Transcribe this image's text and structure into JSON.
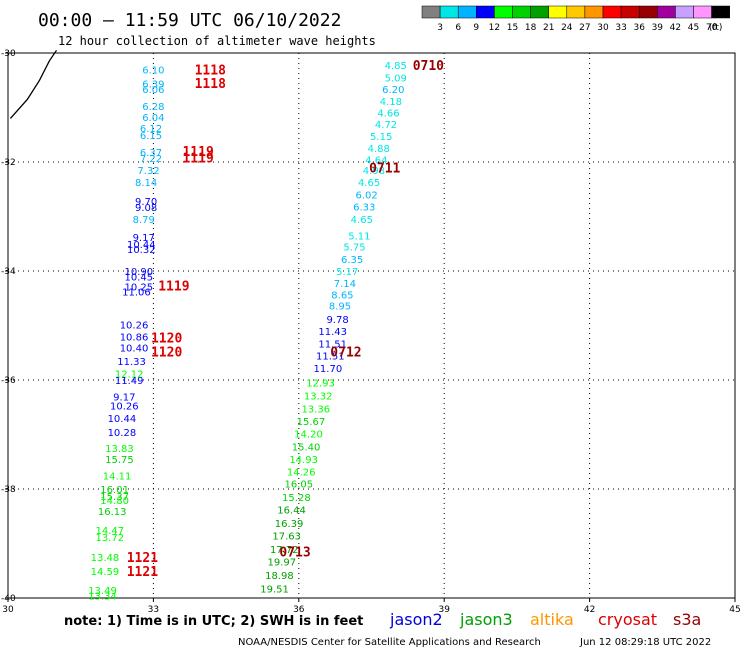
{
  "header": {
    "title": "00:00 – 11:59 UTC 06/10/2022",
    "subtitle": "12 hour collection of altimeter wave heights"
  },
  "colorbar": {
    "colors": [
      "#808080",
      "#00e6e6",
      "#00b4ff",
      "#0000ff",
      "#00ff00",
      "#00d200",
      "#00a000",
      "#ffff00",
      "#ffc800",
      "#ff9600",
      "#ff0000",
      "#c80000",
      "#960000",
      "#a000a0",
      "#c8a0ff",
      "#ff96ff",
      "#000000"
    ],
    "labels": [
      "3",
      "6",
      "9",
      "12",
      "15",
      "18",
      "21",
      "24",
      "27",
      "30",
      "33",
      "36",
      "39",
      "42",
      "45",
      "70",
      "(ft)"
    ]
  },
  "footer": {
    "note": "note: 1) Time is in UTC; 2) SWH is in feet",
    "credit": "NOAA/NESDIS Center for Satellite Applications and Research",
    "timestamp": "Jun 12 08:29:18 UTC 2022",
    "legend": [
      {
        "name": "jason2",
        "color": "#0000dd"
      },
      {
        "name": "jason3",
        "color": "#00a000"
      },
      {
        "name": "altika",
        "color": "#ff9600"
      },
      {
        "name": "cryosat",
        "color": "#dd0000"
      },
      {
        "name": "s3a",
        "color": "#960000"
      }
    ]
  },
  "chart_data": {
    "type": "scatter",
    "xlim": [
      30,
      45
    ],
    "ylim": [
      -40,
      -30
    ],
    "xticks": [
      "30",
      "33",
      "36",
      "39",
      "42",
      "45"
    ],
    "yticks": [
      "-30",
      "-32",
      "-34",
      "-36",
      "-38",
      "-40"
    ],
    "grid": "dotted",
    "coastline": [
      [
        30.05,
        -31.2
      ],
      [
        30.4,
        -30.85
      ],
      [
        30.65,
        -30.5
      ],
      [
        30.85,
        -30.15
      ],
      [
        31.0,
        -29.95
      ]
    ],
    "track_labels": [
      {
        "lon": 33.85,
        "lat": -30.3,
        "text": "1118",
        "color": "#dd0000"
      },
      {
        "lon": 33.85,
        "lat": -30.55,
        "text": "1118",
        "color": "#dd0000"
      },
      {
        "lon": 33.6,
        "lat": -31.8,
        "text": "1119",
        "color": "#dd0000"
      },
      {
        "lon": 33.6,
        "lat": -31.92,
        "text": "1119",
        "color": "#dd0000"
      },
      {
        "lon": 33.1,
        "lat": -34.27,
        "text": "1119",
        "color": "#dd0000"
      },
      {
        "lon": 32.95,
        "lat": -35.22,
        "text": "1120",
        "color": "#dd0000"
      },
      {
        "lon": 32.95,
        "lat": -35.48,
        "text": "1120",
        "color": "#dd0000"
      },
      {
        "lon": 32.45,
        "lat": -39.25,
        "text": "1121",
        "color": "#dd0000"
      },
      {
        "lon": 32.45,
        "lat": -39.5,
        "text": "1121",
        "color": "#dd0000"
      },
      {
        "lon": 38.35,
        "lat": -30.22,
        "text": "0710",
        "color": "#960000"
      },
      {
        "lon": 37.45,
        "lat": -32.1,
        "text": "0711",
        "color": "#960000"
      },
      {
        "lon": 36.65,
        "lat": -35.48,
        "text": "0712",
        "color": "#960000"
      },
      {
        "lon": 35.6,
        "lat": -39.15,
        "text": "0713",
        "color": "#960000"
      }
    ],
    "series": [
      {
        "name": "cryosat",
        "points": [
          {
            "lon": 33.0,
            "lat": -30.3,
            "swh": "6.10",
            "color": "#00b4ff"
          },
          {
            "lon": 33.0,
            "lat": -30.56,
            "swh": "6.39",
            "color": "#00b4ff"
          },
          {
            "lon": 33.0,
            "lat": -30.66,
            "swh": "6.06",
            "color": "#00b4ff"
          },
          {
            "lon": 33.0,
            "lat": -30.97,
            "swh": "6.28",
            "color": "#00b4ff"
          },
          {
            "lon": 33.0,
            "lat": -31.17,
            "swh": "6.04",
            "color": "#00b4ff"
          },
          {
            "lon": 32.95,
            "lat": -31.38,
            "swh": "6.12",
            "color": "#00b4ff"
          },
          {
            "lon": 32.95,
            "lat": -31.5,
            "swh": "6.15",
            "color": "#00b4ff"
          },
          {
            "lon": 32.95,
            "lat": -31.82,
            "swh": "6.37",
            "color": "#00b4ff"
          },
          {
            "lon": 32.95,
            "lat": -31.93,
            "swh": "7.22",
            "color": "#00b4ff"
          },
          {
            "lon": 32.9,
            "lat": -32.15,
            "swh": "7.32",
            "color": "#00b4ff"
          },
          {
            "lon": 32.85,
            "lat": -32.37,
            "swh": "8.14",
            "color": "#00b4ff"
          },
          {
            "lon": 32.85,
            "lat": -32.72,
            "swh": "9.70",
            "color": "#0000ff"
          },
          {
            "lon": 32.85,
            "lat": -32.83,
            "swh": "9.08",
            "color": "#0000ff"
          },
          {
            "lon": 32.8,
            "lat": -33.05,
            "swh": "8.79",
            "color": "#00b4ff"
          },
          {
            "lon": 32.8,
            "lat": -33.38,
            "swh": "9.17",
            "color": "#0000ff"
          },
          {
            "lon": 32.75,
            "lat": -33.5,
            "swh": "10.44",
            "color": "#0000ff"
          },
          {
            "lon": 32.75,
            "lat": -33.6,
            "swh": "10.32",
            "color": "#0000ff"
          },
          {
            "lon": 32.7,
            "lat": -34.0,
            "swh": "10.90",
            "color": "#0000ff"
          },
          {
            "lon": 32.7,
            "lat": -34.1,
            "swh": "10.45",
            "color": "#0000ff"
          },
          {
            "lon": 32.7,
            "lat": -34.28,
            "swh": "10.25",
            "color": "#0000ff"
          },
          {
            "lon": 32.65,
            "lat": -34.38,
            "swh": "11.06",
            "color": "#0000ff"
          },
          {
            "lon": 32.6,
            "lat": -34.98,
            "swh": "10.26",
            "color": "#0000ff"
          },
          {
            "lon": 32.6,
            "lat": -35.2,
            "swh": "10.86",
            "color": "#0000ff"
          },
          {
            "lon": 32.6,
            "lat": -35.4,
            "swh": "10.40",
            "color": "#0000ff"
          },
          {
            "lon": 32.55,
            "lat": -35.65,
            "swh": "11.33",
            "color": "#0000ff"
          },
          {
            "lon": 32.5,
            "lat": -35.88,
            "swh": "12.12",
            "color": "#00ff00"
          },
          {
            "lon": 32.5,
            "lat": -36.0,
            "swh": "11.49",
            "color": "#0000ff"
          },
          {
            "lon": 32.4,
            "lat": -36.3,
            "swh": "9.17",
            "color": "#0000ff"
          },
          {
            "lon": 32.4,
            "lat": -36.47,
            "swh": "10.26",
            "color": "#0000ff"
          },
          {
            "lon": 32.35,
            "lat": -36.7,
            "swh": "10.44",
            "color": "#0000ff"
          },
          {
            "lon": 32.35,
            "lat": -36.95,
            "swh": "10.28",
            "color": "#0000ff"
          },
          {
            "lon": 32.3,
            "lat": -37.25,
            "swh": "13.83",
            "color": "#00ff00"
          },
          {
            "lon": 32.3,
            "lat": -37.45,
            "swh": "15.75",
            "color": "#00d200"
          },
          {
            "lon": 32.25,
            "lat": -37.75,
            "swh": "14.11",
            "color": "#00ff00"
          },
          {
            "lon": 32.2,
            "lat": -38.0,
            "swh": "16.01",
            "color": "#00d200"
          },
          {
            "lon": 32.2,
            "lat": -38.13,
            "swh": "15.37",
            "color": "#00d200"
          },
          {
            "lon": 32.2,
            "lat": -38.2,
            "swh": "14.80",
            "color": "#00ff00"
          },
          {
            "lon": 32.15,
            "lat": -38.4,
            "swh": "16.13",
            "color": "#00d200"
          },
          {
            "lon": 32.1,
            "lat": -38.75,
            "swh": "14.47",
            "color": "#00ff00"
          },
          {
            "lon": 32.1,
            "lat": -38.88,
            "swh": "13.72",
            "color": "#00ff00"
          },
          {
            "lon": 32.0,
            "lat": -39.25,
            "swh": "13.48",
            "color": "#00ff00"
          },
          {
            "lon": 32.0,
            "lat": -39.5,
            "swh": "14.59",
            "color": "#00ff00"
          },
          {
            "lon": 31.95,
            "lat": -39.85,
            "swh": "13.49",
            "color": "#00ff00"
          },
          {
            "lon": 31.95,
            "lat": -39.95,
            "swh": "13.34",
            "color": "#00ff00"
          }
        ]
      },
      {
        "name": "s3a",
        "points": [
          {
            "lon": 38.0,
            "lat": -30.22,
            "swh": "4.85",
            "color": "#00e6e6"
          },
          {
            "lon": 38.0,
            "lat": -30.45,
            "swh": "5.09",
            "color": "#00e6e6"
          },
          {
            "lon": 37.95,
            "lat": -30.66,
            "swh": "6.20",
            "color": "#00b4ff"
          },
          {
            "lon": 37.9,
            "lat": -30.88,
            "swh": "4.18",
            "color": "#00e6e6"
          },
          {
            "lon": 37.85,
            "lat": -31.09,
            "swh": "4.66",
            "color": "#00e6e6"
          },
          {
            "lon": 37.8,
            "lat": -31.3,
            "swh": "4.72",
            "color": "#00e6e6"
          },
          {
            "lon": 37.7,
            "lat": -31.52,
            "swh": "5.15",
            "color": "#00e6e6"
          },
          {
            "lon": 37.65,
            "lat": -31.74,
            "swh": "4.88",
            "color": "#00e6e6"
          },
          {
            "lon": 37.6,
            "lat": -31.95,
            "swh": "4.64",
            "color": "#00e6e6"
          },
          {
            "lon": 37.55,
            "lat": -32.15,
            "swh": "4.98",
            "color": "#00e6e6"
          },
          {
            "lon": 37.45,
            "lat": -32.37,
            "swh": "4.65",
            "color": "#00e6e6"
          },
          {
            "lon": 37.4,
            "lat": -32.6,
            "swh": "6.02",
            "color": "#00b4ff"
          },
          {
            "lon": 37.35,
            "lat": -32.82,
            "swh": "6.33",
            "color": "#00b4ff"
          },
          {
            "lon": 37.3,
            "lat": -33.05,
            "swh": "4.65",
            "color": "#00e6e6"
          },
          {
            "lon": 37.25,
            "lat": -33.35,
            "swh": "5.11",
            "color": "#00e6e6"
          },
          {
            "lon": 37.15,
            "lat": -33.55,
            "swh": "5.75",
            "color": "#00e6e6"
          },
          {
            "lon": 37.1,
            "lat": -33.78,
            "swh": "6.35",
            "color": "#00b4ff"
          },
          {
            "lon": 37.0,
            "lat": -34.0,
            "swh": "5.17",
            "color": "#00e6e6"
          },
          {
            "lon": 36.95,
            "lat": -34.22,
            "swh": "7.14",
            "color": "#00b4ff"
          },
          {
            "lon": 36.9,
            "lat": -34.43,
            "swh": "8.65",
            "color": "#00b4ff"
          },
          {
            "lon": 36.85,
            "lat": -34.63,
            "swh": "8.95",
            "color": "#00b4ff"
          },
          {
            "lon": 36.8,
            "lat": -34.88,
            "swh": "9.78",
            "color": "#0000ff"
          },
          {
            "lon": 36.7,
            "lat": -35.1,
            "swh": "11.43",
            "color": "#0000ff"
          },
          {
            "lon": 36.7,
            "lat": -35.33,
            "swh": "11.51",
            "color": "#0000ff"
          },
          {
            "lon": 36.65,
            "lat": -35.55,
            "swh": "11.51",
            "color": "#0000ff"
          },
          {
            "lon": 36.6,
            "lat": -35.78,
            "swh": "11.70",
            "color": "#0000ff"
          },
          {
            "lon": 36.45,
            "lat": -36.05,
            "swh": "12.93",
            "color": "#00ff00"
          },
          {
            "lon": 36.4,
            "lat": -36.28,
            "swh": "13.32",
            "color": "#00ff00"
          },
          {
            "lon": 36.35,
            "lat": -36.52,
            "swh": "13.36",
            "color": "#00ff00"
          },
          {
            "lon": 36.25,
            "lat": -36.75,
            "swh": "15.67",
            "color": "#00d200"
          },
          {
            "lon": 36.2,
            "lat": -36.98,
            "swh": "14.20",
            "color": "#00ff00"
          },
          {
            "lon": 36.15,
            "lat": -37.22,
            "swh": "15.40",
            "color": "#00d200"
          },
          {
            "lon": 36.1,
            "lat": -37.45,
            "swh": "14.93",
            "color": "#00ff00"
          },
          {
            "lon": 36.05,
            "lat": -37.68,
            "swh": "14.26",
            "color": "#00ff00"
          },
          {
            "lon": 36.0,
            "lat": -37.9,
            "swh": "16.05",
            "color": "#00d200"
          },
          {
            "lon": 35.95,
            "lat": -38.15,
            "swh": "15.28",
            "color": "#00d200"
          },
          {
            "lon": 35.85,
            "lat": -38.38,
            "swh": "16.44",
            "color": "#00a000"
          },
          {
            "lon": 35.8,
            "lat": -38.62,
            "swh": "16.39",
            "color": "#00a000"
          },
          {
            "lon": 35.75,
            "lat": -38.85,
            "swh": "17.63",
            "color": "#00a000"
          },
          {
            "lon": 35.7,
            "lat": -39.1,
            "swh": "17.72",
            "color": "#00a000"
          },
          {
            "lon": 35.65,
            "lat": -39.33,
            "swh": "19.97",
            "color": "#00a000"
          },
          {
            "lon": 35.6,
            "lat": -39.58,
            "swh": "18.98",
            "color": "#00a000"
          },
          {
            "lon": 35.5,
            "lat": -39.83,
            "swh": "19.51",
            "color": "#00a000"
          }
        ]
      }
    ]
  }
}
